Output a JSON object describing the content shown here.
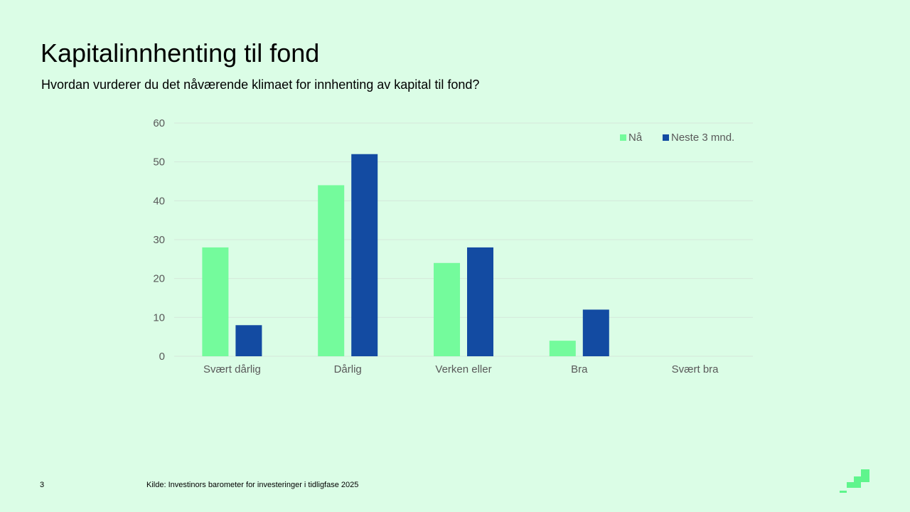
{
  "slide": {
    "title": "Kapitalinnhenting til fond",
    "subtitle": "Hvordan vurderer du det nåværende klimaet for innhenting av kapital til fond?",
    "page_number": "3",
    "source": "Kilde: Investinors barometer for investeringer i tidligfase 2025"
  },
  "colors": {
    "background": "#dbfde6",
    "series_na": "#74fb9c",
    "series_neste": "#134ba2",
    "gridline": "#d4e8da",
    "axis_text": "#595959",
    "logo": "#5ff58d"
  },
  "chart_data": {
    "type": "bar",
    "title": "",
    "xlabel": "",
    "ylabel": "",
    "categories": [
      "Svært dårlig",
      "Dårlig",
      "Verken eller",
      "Bra",
      "Svært bra"
    ],
    "series": [
      {
        "name": "Nå",
        "values": [
          28,
          44,
          24,
          4,
          0
        ]
      },
      {
        "name": "Neste 3 mnd.",
        "values": [
          8,
          52,
          28,
          12,
          0
        ]
      }
    ],
    "ylim": [
      0,
      60
    ],
    "yticks": [
      0,
      10,
      20,
      30,
      40,
      50,
      60
    ],
    "grid": true,
    "legend_position": "top-right"
  }
}
